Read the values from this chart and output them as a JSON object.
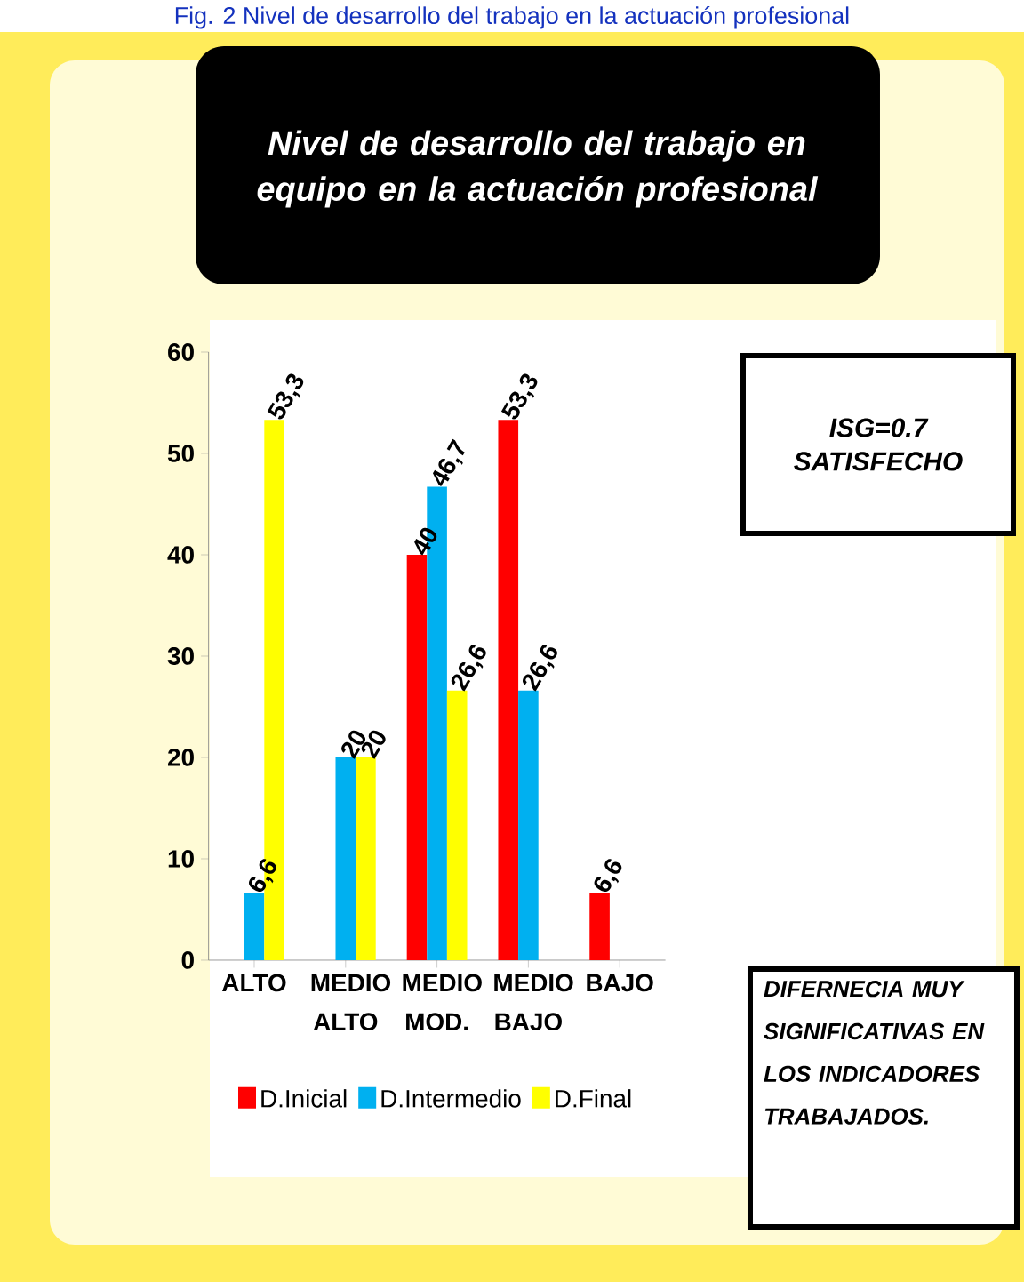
{
  "chart_data": {
    "type": "bar",
    "title": "Nivel de desarrollo del trabajo en equipo en la actuación profesional",
    "categories": [
      "ALTO",
      "MEDIO ALTO",
      "MEDIO MOD.",
      "MEDIO BAJO",
      "BAJO"
    ],
    "series": [
      {
        "name": "D.Inicial",
        "color": "#ff0000",
        "values": [
          null,
          null,
          40,
          53.3,
          6.6
        ],
        "value_labels": [
          null,
          null,
          "40",
          "53,3",
          "6,6"
        ]
      },
      {
        "name": "D.Intermedio",
        "color": "#00b0f0",
        "values": [
          6.6,
          20,
          46.7,
          26.6,
          null
        ],
        "value_labels": [
          "6,6",
          "20",
          "46,7",
          "26,6",
          null
        ]
      },
      {
        "name": "D.Final",
        "color": "#ffff00",
        "values": [
          53.3,
          20,
          26.6,
          null,
          null
        ],
        "value_labels": [
          "53,3",
          "20",
          "26,6",
          null,
          null
        ]
      }
    ],
    "ylim": [
      0,
      60
    ],
    "yticks": [
      0,
      10,
      20,
      30,
      40,
      50,
      60
    ],
    "grid": false,
    "legend": "bottom",
    "annotations": [
      "Fig. 2 Nivel de desarrollo del trabajo en la actuación profesional",
      "ISG=0.7 SATISFECHO",
      "DIFERNECIA MUY SIGNIFICATIVAS EN LOS INDICADORES TRABAJADOS."
    ]
  }
}
